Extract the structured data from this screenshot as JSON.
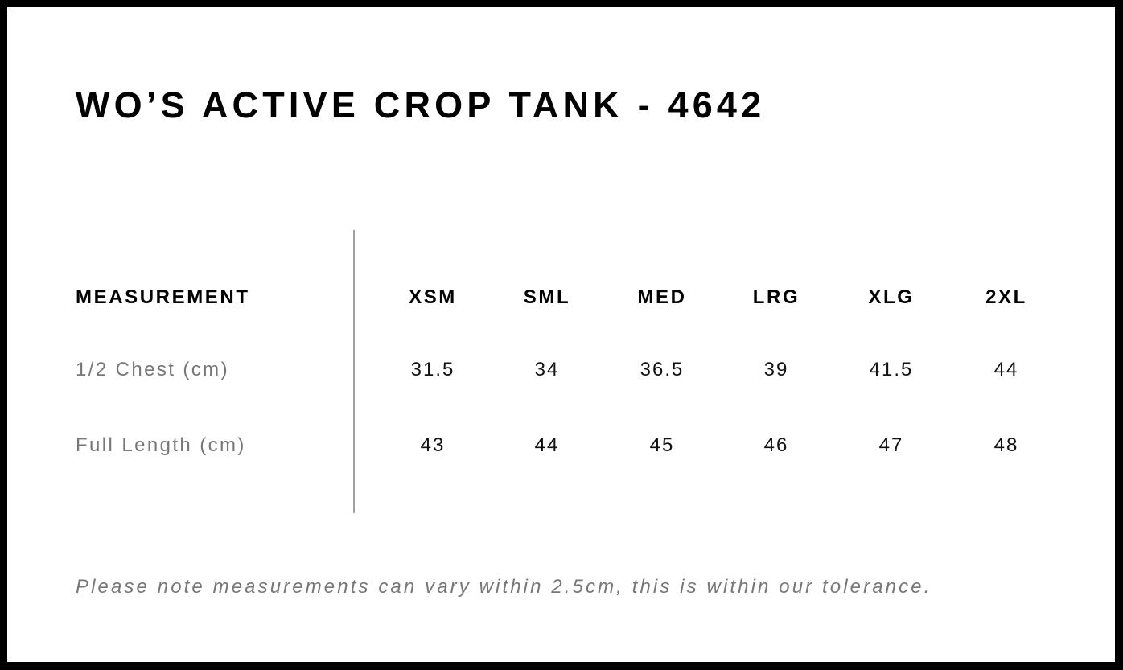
{
  "title": "WO’S ACTIVE CROP TANK - 4642",
  "table": {
    "header_label": "MEASUREMENT",
    "sizes": [
      "XSM",
      "SML",
      "MED",
      "LRG",
      "XLG",
      "2XL"
    ],
    "rows": [
      {
        "label": "1/2 Chest (cm)",
        "values": [
          "31.5",
          "34",
          "36.5",
          "39",
          "41.5",
          "44"
        ]
      },
      {
        "label": "Full Length (cm)",
        "values": [
          "43",
          "44",
          "45",
          "46",
          "47",
          "48"
        ]
      }
    ]
  },
  "note": "Please note measurements can vary within 2.5cm, this is within our tolerance.",
  "colors": {
    "border": "#000000",
    "label_gray": "#777777",
    "divider": "#a0a0a0"
  }
}
